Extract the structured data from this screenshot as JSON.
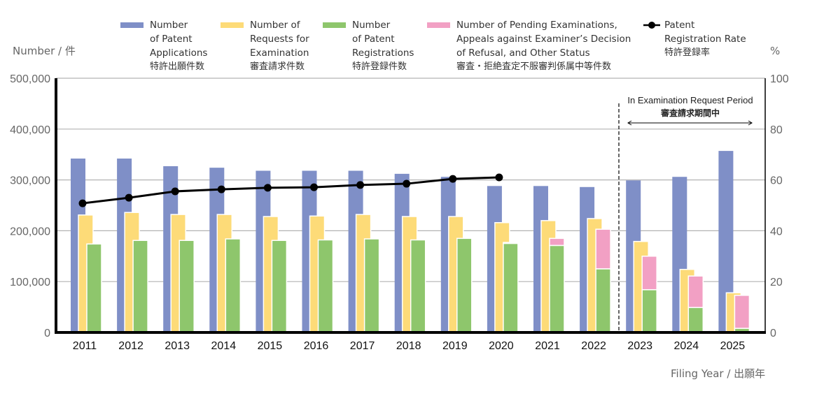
{
  "chart_data": {
    "type": "bar",
    "title": "",
    "xlabel": "Filing Year / 出願年",
    "ylabel": "Number / 件",
    "y2label": "%",
    "ylim": [
      0,
      500000
    ],
    "y2lim": [
      0,
      100
    ],
    "yticks": [
      "0",
      "100,000",
      "200,000",
      "300,000",
      "400,000",
      "500,000"
    ],
    "y2ticks": [
      "0",
      "20",
      "40",
      "60",
      "80",
      "100"
    ],
    "grid": true,
    "legend_position": "top",
    "categories": [
      "2011",
      "2012",
      "2013",
      "2014",
      "2015",
      "2016",
      "2017",
      "2018",
      "2019",
      "2020",
      "2021",
      "2022",
      "2023",
      "2024",
      "2025"
    ],
    "series": [
      {
        "name": "Number of Patent Applications",
        "name_jp": "特許出願件数",
        "type": "bar",
        "color": "#7F8FC7",
        "values": [
          342000,
          342000,
          327000,
          324000,
          318000,
          318000,
          318000,
          312000,
          306000,
          288000,
          288000,
          286000,
          299000,
          306000,
          357000
        ]
      },
      {
        "name": "Number of Requests for Examination",
        "name_jp": "審査請求件数",
        "type": "bar",
        "color": "#FDDB78",
        "values": [
          231000,
          236000,
          232000,
          232000,
          228000,
          229000,
          232000,
          228000,
          228000,
          216000,
          220000,
          224000,
          179000,
          124000,
          78000
        ]
      },
      {
        "name": "Number of Patent Registrations",
        "name_jp": "特許登録件数",
        "type": "bar",
        "color": "#8EC66C",
        "values": [
          174000,
          181000,
          181000,
          184000,
          181000,
          182000,
          184000,
          182000,
          185000,
          175000,
          171000,
          125000,
          84000,
          49000,
          8000
        ]
      },
      {
        "name": "Number of Pending Examinations, Appeals against Examiner's Decision of Refusal, and Other Status",
        "name_jp": "審査・拒絶査定不服審判係属中等件数",
        "type": "stacked-bar-on-registrations",
        "color": "#F2A0C4",
        "values": [
          0,
          0,
          0,
          0,
          0,
          0,
          0,
          0,
          0,
          2000,
          14000,
          78000,
          66000,
          62000,
          65000
        ]
      },
      {
        "name": "Patent Registration Rate",
        "name_jp": "特許登録率",
        "type": "line",
        "axis": "right",
        "color": "#000000",
        "values": [
          50.8,
          53.0,
          55.5,
          56.3,
          56.9,
          57.1,
          58.0,
          58.5,
          60.4,
          61.0,
          null,
          null,
          null,
          null,
          null
        ]
      }
    ],
    "annotations": [
      {
        "text": "In Examination Request Period",
        "text_jp": "審査請求期間中",
        "applies_to": [
          "2023",
          "2024",
          "2025"
        ],
        "style": "dashed divider with double-headed arrow"
      }
    ]
  },
  "legend": [
    {
      "text": "Number\nof Patent\nApplications",
      "jp": "特許出願件数",
      "color": "#7F8FC7"
    },
    {
      "text": "Number of\nRequests for\nExamination",
      "jp": "審査請求件数",
      "color": "#FDDB78"
    },
    {
      "text": "Number\nof Patent\nRegistrations",
      "jp": "特許登録件数",
      "color": "#8EC66C"
    },
    {
      "text": "Number of Pending Examinations,\nAppeals against Examiner’s Decision\nof Refusal, and Other Status",
      "jp": "審査・拒絶査定不服審判係属中等件数",
      "color": "#F2A0C4"
    },
    {
      "text": "Patent\nRegistration Rate",
      "jp": "特許登録率",
      "color": "#000000"
    }
  ],
  "labels": {
    "y_left": "Number / 件",
    "y_right": "%",
    "x": "Filing Year / 出願年",
    "annot_en": "In Examination Request Period",
    "annot_jp": "審査請求期間中"
  }
}
